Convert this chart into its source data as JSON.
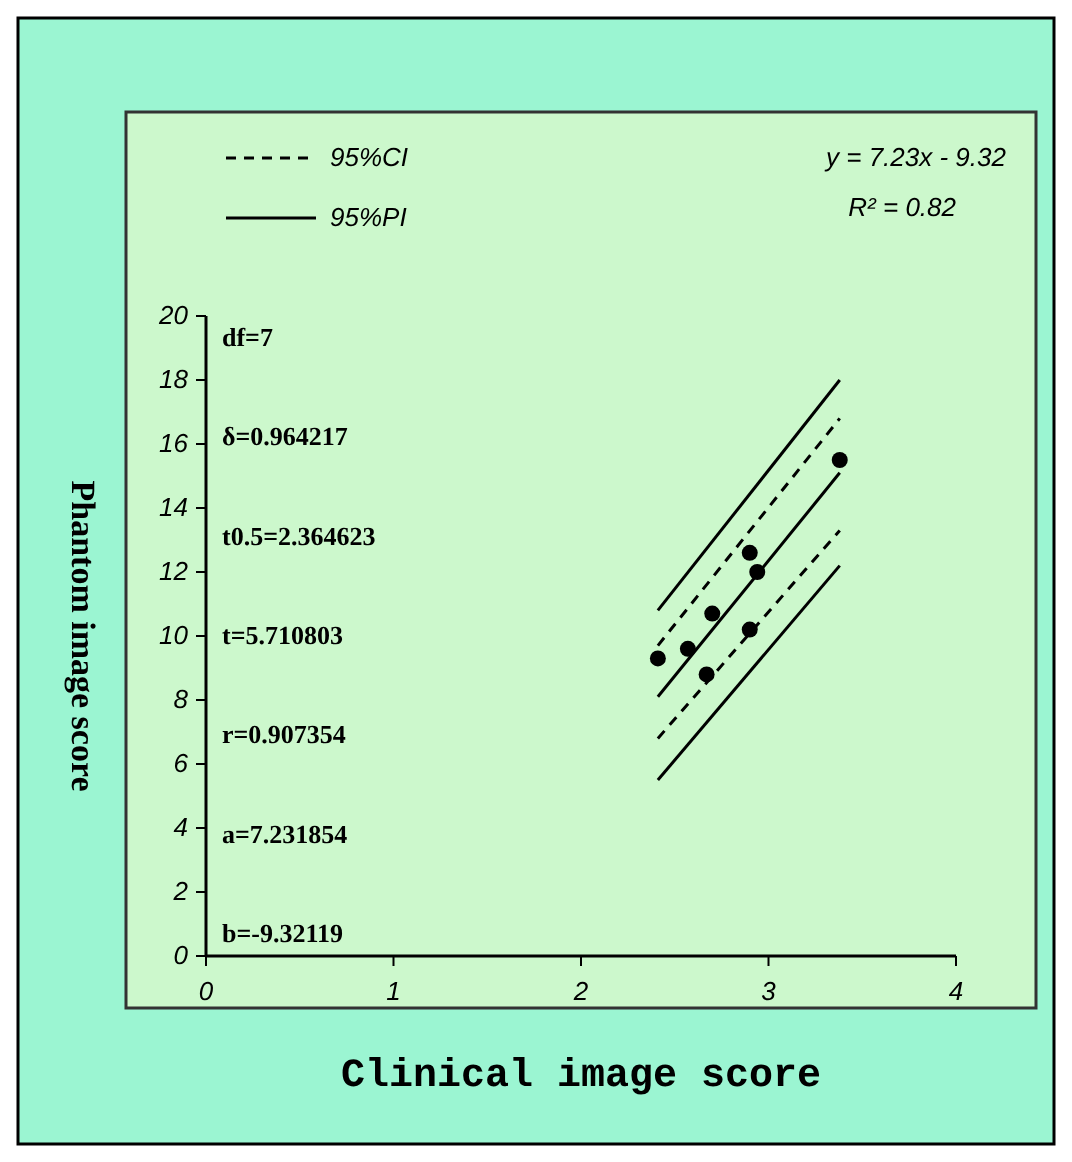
{
  "chart_data": {
    "type": "scatter",
    "xlabel": "Clinical image score",
    "ylabel": "Phantom image score",
    "xlim": [
      0,
      4
    ],
    "xticks": [
      0,
      1,
      2,
      3,
      4
    ],
    "ylim": [
      0,
      20
    ],
    "yticks": [
      0,
      2,
      4,
      6,
      8,
      10,
      12,
      14,
      16,
      18,
      20
    ],
    "grid": false,
    "legend": "top left",
    "marker": "circle",
    "series": [
      {
        "color": "#000000",
        "x": [
          2.41,
          2.57,
          2.67,
          2.7,
          2.9,
          2.94,
          2.9,
          3.38
        ],
        "values": [
          9.3,
          9.6,
          8.8,
          10.7,
          12.6,
          12.0,
          10.2,
          15.5
        ]
      },
      {
        "type": "line",
        "color": "#000000",
        "line_style": "solid",
        "marker": "none",
        "x": [
          2.41,
          3.38
        ],
        "values": [
          8.1,
          15.1
        ]
      },
      {
        "type": "line",
        "name": "95%CI",
        "color": "#000000",
        "line_style": "dashed",
        "marker": "none",
        "x": [
          2.41,
          3.38
        ],
        "values": [
          9.7,
          16.8
        ]
      },
      {
        "type": "line",
        "color": "#000000",
        "line_style": "dashed",
        "marker": "none",
        "x": [
          2.41,
          3.38
        ],
        "values": [
          6.8,
          13.3
        ]
      },
      {
        "type": "line",
        "name": "95%PI",
        "color": "#000000",
        "line_style": "solid",
        "marker": "none",
        "x": [
          2.41,
          3.38
        ],
        "values": [
          10.8,
          18.0
        ]
      },
      {
        "type": "line",
        "color": "#000000",
        "line_style": "solid",
        "marker": "none",
        "x": [
          2.41,
          3.38
        ],
        "values": [
          5.5,
          12.2
        ]
      }
    ],
    "annotations": [
      "y = 7.23x - 9.32",
      "R² = 0.82",
      "df=7",
      "δ=0.964217",
      "t0.5=2.364623",
      "t=5.710803",
      "r=0.907354",
      "a=7.231854",
      "b=-9.32119"
    ]
  }
}
